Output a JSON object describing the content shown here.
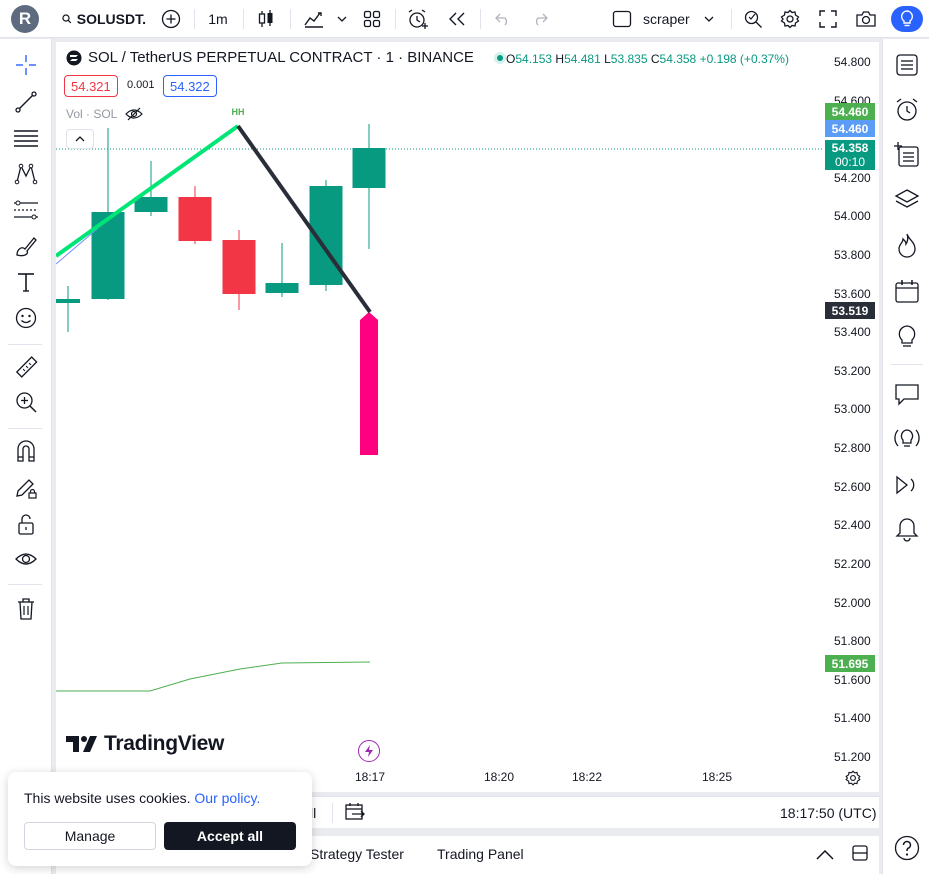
{
  "topbar": {
    "avatar_letter": "R",
    "symbol": "SOLUSDT.",
    "interval": "1m",
    "layout_name": "scraper"
  },
  "legend": {
    "title": "SOL / TetherUS PERPETUAL CONTRACT · 1 · BINANCE",
    "open_label": "O",
    "open": "54.153",
    "high_label": "H",
    "high": "54.481",
    "low_label": "L",
    "low": "53.835",
    "close_label": "C",
    "close": "54.358",
    "change": "+0.198 (+0.37%)",
    "bid": "54.321",
    "spread": "0.001",
    "ask": "54.322",
    "volume_label": "Vol · SOL"
  },
  "annotation": {
    "hh": "HH"
  },
  "yaxis": {
    "ticks": [
      "54.800",
      "54.600",
      "54.200",
      "54.000",
      "53.800",
      "53.600",
      "53.400",
      "53.200",
      "53.000",
      "52.800",
      "52.600",
      "52.400",
      "52.200",
      "52.000",
      "51.800",
      "51.600",
      "51.400",
      "51.200"
    ],
    "tag_green_top": "54.460",
    "tag_blue": "54.460",
    "tag_last_price": "54.358",
    "tag_countdown": "00:10",
    "tag_dark": "53.519",
    "tag_green_bottom": "51.695"
  },
  "xaxis": {
    "ticks": [
      "18:17",
      "18:20",
      "18:22",
      "18:25"
    ]
  },
  "branding": {
    "logo_text": "TradingView"
  },
  "bottombar": {
    "partial_text": "ll",
    "clock": "18:17:50 (UTC)"
  },
  "bottom_panel": {
    "tab_strategy": "Strategy Tester",
    "tab_trading": "Trading Panel"
  },
  "cookie": {
    "text": "This website uses cookies.",
    "link": "Our policy.",
    "manage": "Manage",
    "accept": "Accept all"
  },
  "colors": {
    "up": "#089981",
    "down": "#f23645",
    "magenta": "#ff0080",
    "accent": "#2962ff",
    "line_green": "#00e676",
    "line_dark": "#2a2e39",
    "ma_green": "#4caf50"
  }
}
